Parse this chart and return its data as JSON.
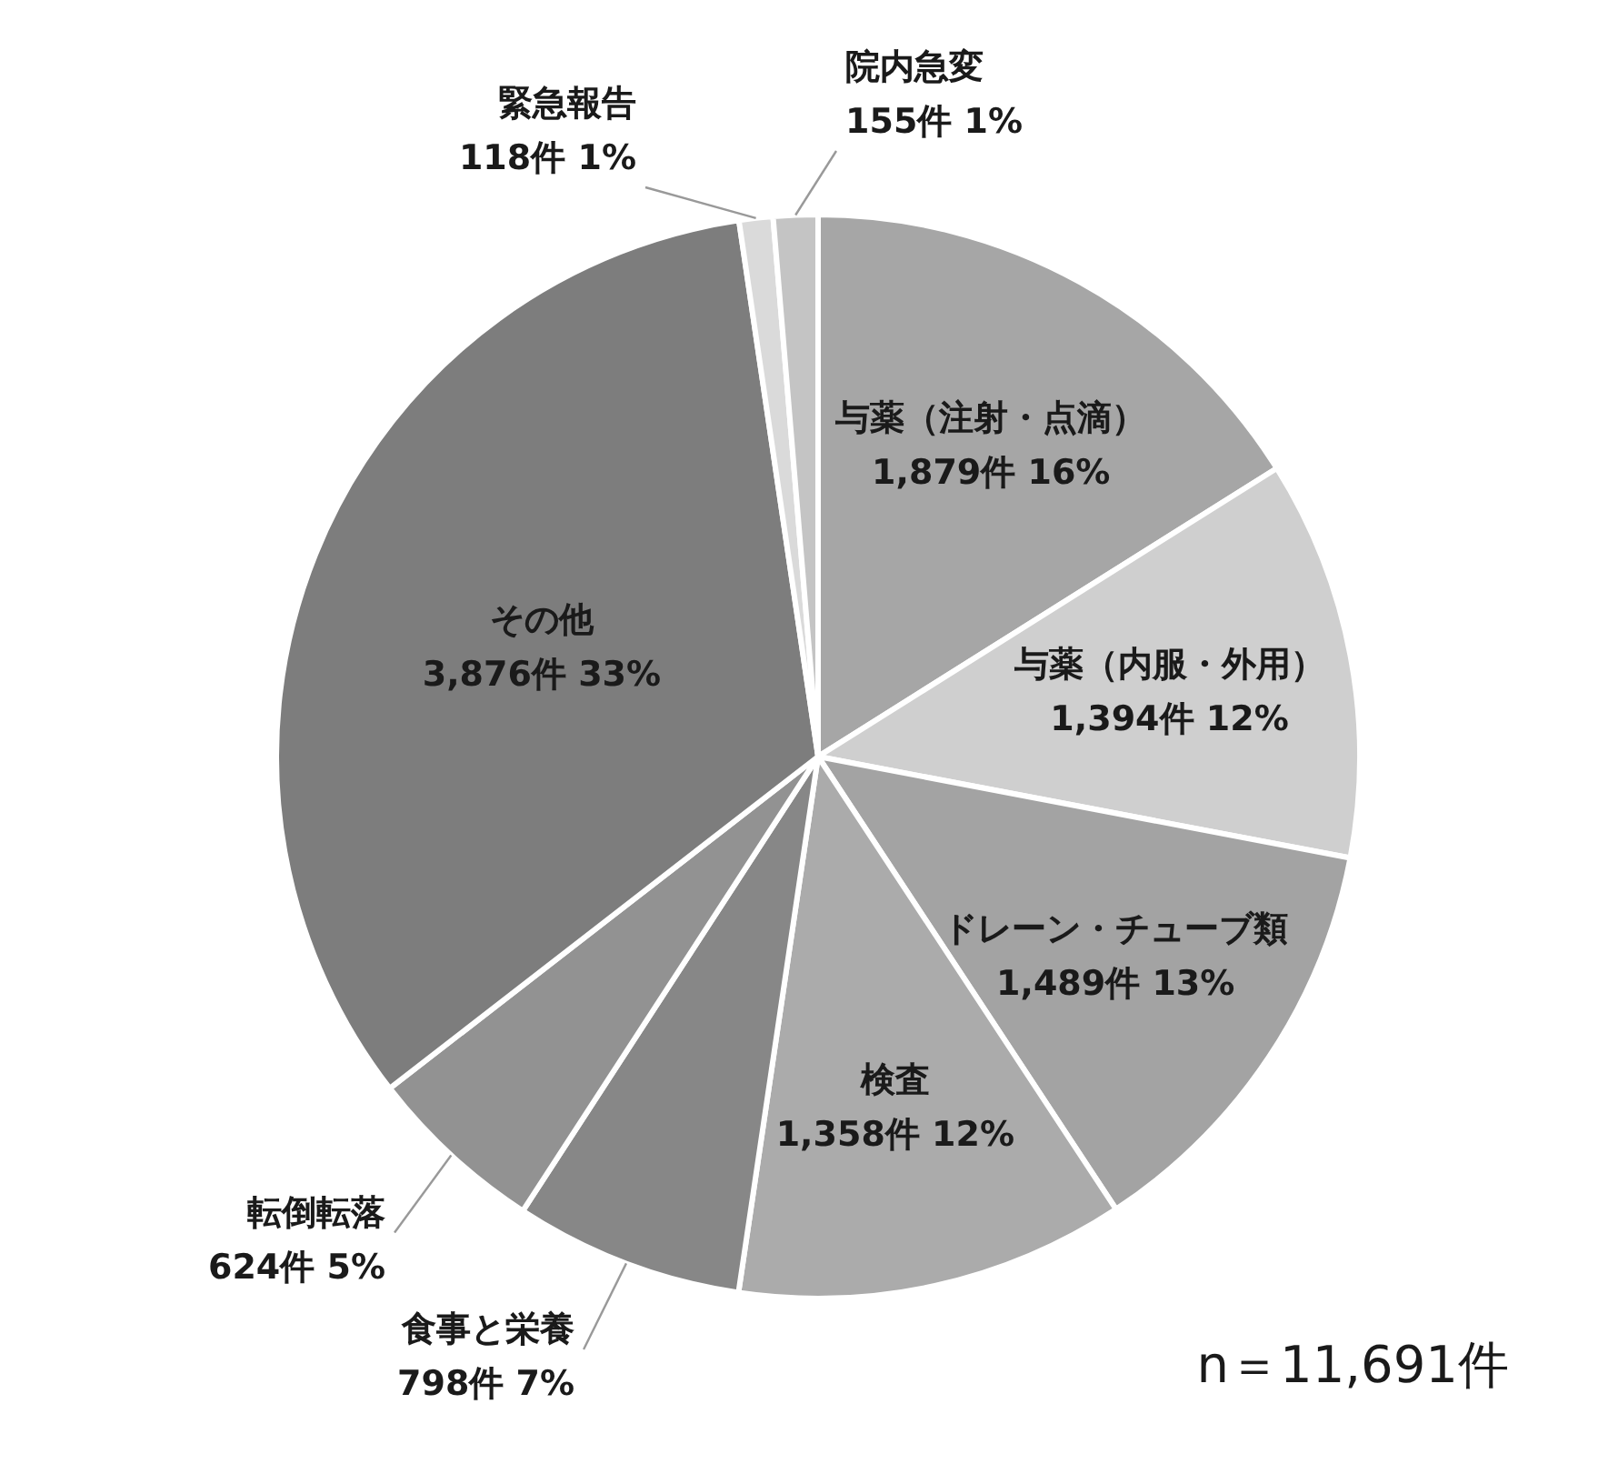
{
  "chart_data": {
    "type": "pie",
    "categories": [
      "与薬（注射・点滴）",
      "与薬（内服・外用）",
      "ドレーン・チューブ類",
      "検査",
      "食事と栄養",
      "転倒転落",
      "その他",
      "緊急報告",
      "院内急変"
    ],
    "values": [
      1879,
      1394,
      1489,
      1358,
      798,
      624,
      3876,
      118,
      155
    ],
    "value_labels": [
      "1,879件 16%",
      "1,394件 12%",
      "1,489件 13%",
      "1,358件 12%",
      "798件 7%",
      "624件 5%",
      "3,876件 33%",
      "118件 1%",
      "155件 1%"
    ],
    "colors": [
      "#a6a6a6",
      "#cfcfcf",
      "#a3a3a3",
      "#ababab",
      "#878787",
      "#929292",
      "#7d7d7d",
      "#dadada",
      "#c4c4c4"
    ],
    "annotations": [
      "n＝11,691件"
    ]
  }
}
